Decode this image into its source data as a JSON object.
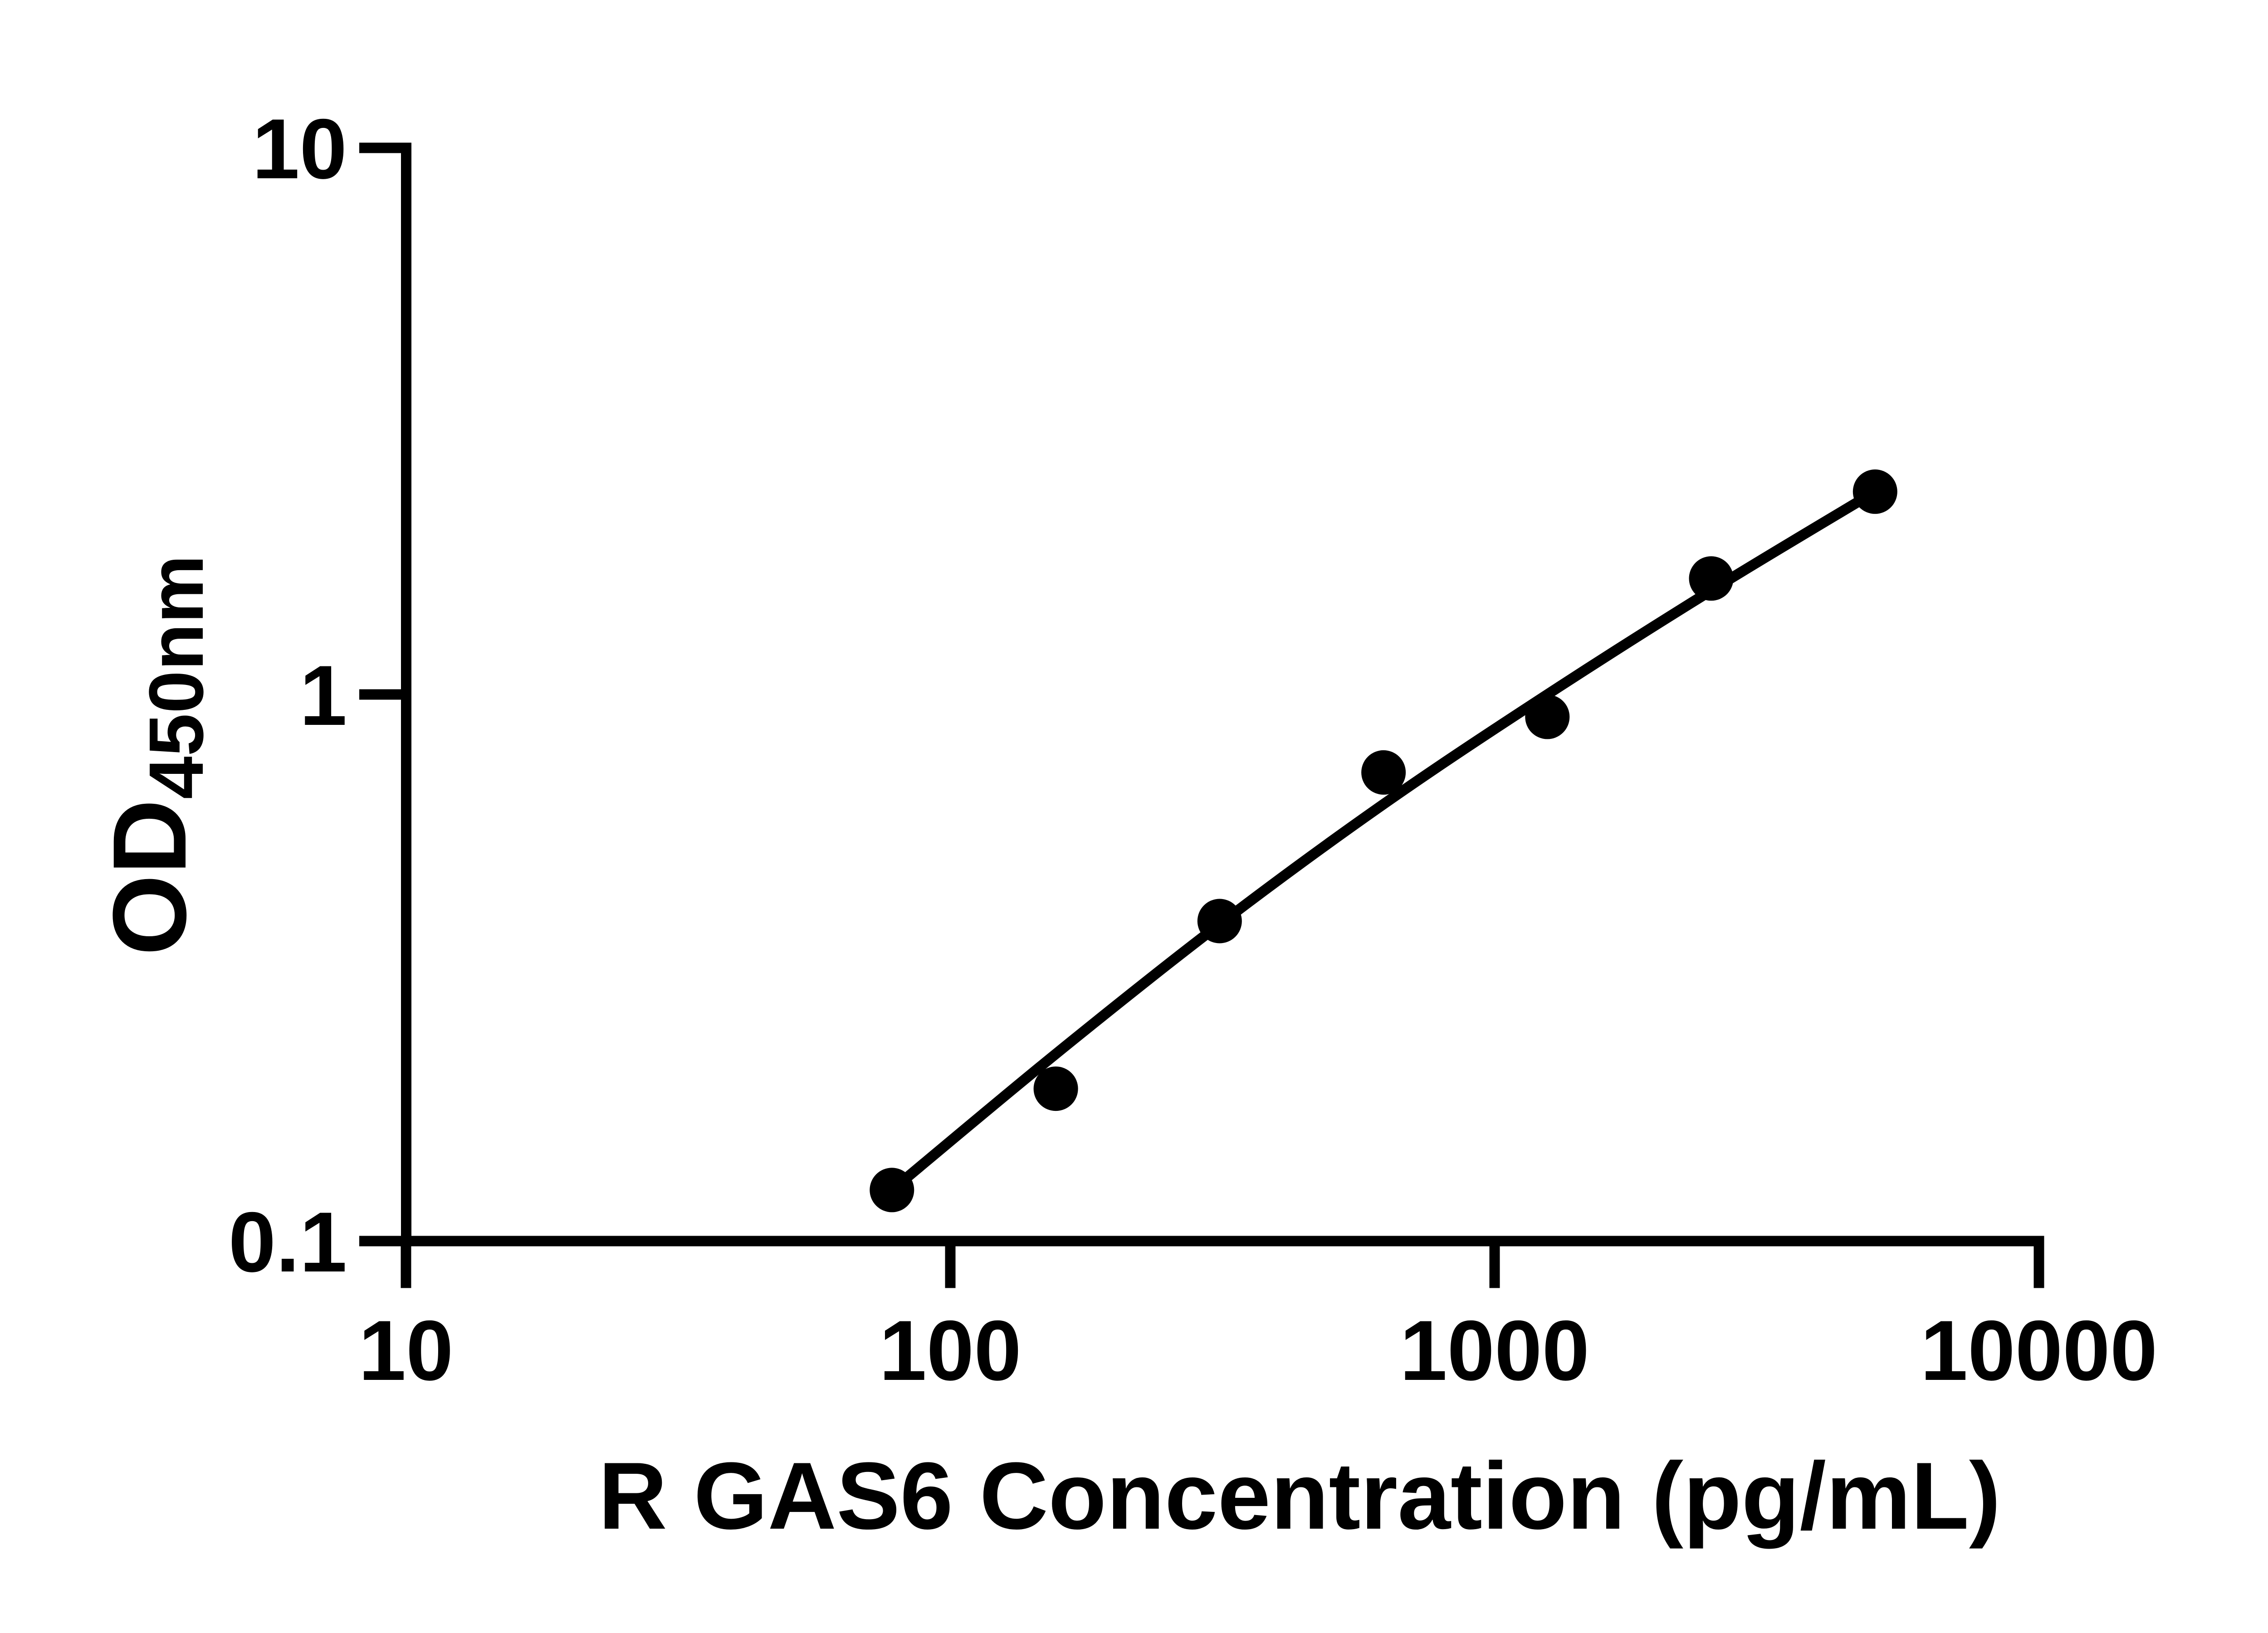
{
  "chart_data": {
    "type": "scatter",
    "title": "",
    "xlabel": "R GAS6 Concentration (pg/mL)",
    "ylabel_main": "OD",
    "ylabel_sub": "450nm",
    "x_scale": "log",
    "y_scale": "log",
    "xlim": [
      10,
      10000
    ],
    "ylim": [
      0.1,
      10
    ],
    "grid": "off",
    "legend": "none",
    "x_ticks": [
      {
        "value": 10,
        "label": "10"
      },
      {
        "value": 100,
        "label": "100"
      },
      {
        "value": 1000,
        "label": "1000"
      },
      {
        "value": 10000,
        "label": "10000"
      }
    ],
    "y_ticks": [
      {
        "value": 0.1,
        "label": "0.1"
      },
      {
        "value": 1,
        "label": "1"
      },
      {
        "value": 10,
        "label": "10"
      }
    ],
    "series": [
      {
        "name": "R GAS6 standard",
        "marker": "filled-circle",
        "color": "#000000",
        "points": [
          {
            "x": 78.125,
            "y": 0.124
          },
          {
            "x": 156.25,
            "y": 0.19
          },
          {
            "x": 312.5,
            "y": 0.385
          },
          {
            "x": 625,
            "y": 0.72
          },
          {
            "x": 1250,
            "y": 0.91
          },
          {
            "x": 2500,
            "y": 1.63
          },
          {
            "x": 5000,
            "y": 2.35
          }
        ]
      }
    ],
    "fit_curve": {
      "name": "fitted standard curve",
      "color": "#000000",
      "anchors": [
        [
          78.125,
          0.124
        ],
        [
          156.25,
          0.22
        ],
        [
          312.5,
          0.38
        ],
        [
          625,
          0.63
        ],
        [
          1250,
          1.0
        ],
        [
          2500,
          1.55
        ],
        [
          5000,
          2.35
        ]
      ]
    }
  }
}
